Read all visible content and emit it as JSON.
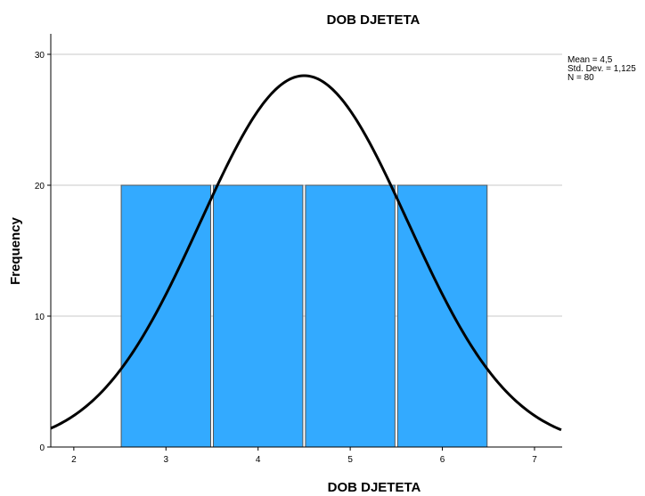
{
  "chart_data": {
    "type": "bar",
    "title": "DOB DJETETA",
    "xlabel": "DOB DJETETA",
    "ylabel": "Frequency",
    "categories": [
      "3",
      "4",
      "5",
      "6"
    ],
    "values": [
      20,
      20,
      20,
      20
    ],
    "x_ticks": [
      "2",
      "3",
      "4",
      "5",
      "6",
      "7"
    ],
    "y_ticks": [
      "0",
      "10",
      "20",
      "30"
    ],
    "xlim": [
      1.75,
      7.3
    ],
    "ylim": [
      0,
      30
    ],
    "grid": true,
    "bar_color": "#33aaff",
    "curve_color": "#000000",
    "normal_curve": {
      "mean": 4.5,
      "std": 1.125,
      "n": 80,
      "bin_width": 1
    },
    "stats": [
      "Mean = 4,5",
      "Std. Dev. = 1,125",
      "N = 80"
    ]
  }
}
